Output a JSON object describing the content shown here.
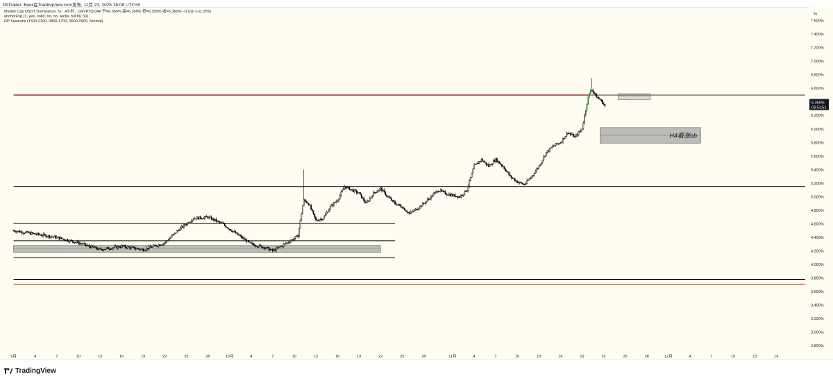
{
  "header": {
    "author_line": "PATrader_Buer在TradingView.com发布, 11月 23, 2025 16:08 UTC+8"
  },
  "legend": {
    "symbol_line": "Market Cap USDT Dominance, % · 4小时 · CRYPTOCAP  开=6.369%  高=6.369%  低=6.359%  收=6.360%  −0.010 (−0.15%)",
    "indicator1": "anchorFvg (1, yes, solid, no, no, wicks, full fill, 50)",
    "indicator2": "RP Sessions (1300-2100, 0800-1700, 0000-0900, Normal)"
  },
  "price_axis": {
    "unit_label": "%",
    "current_price": "6.360%",
    "countdown": "03:51:51"
  },
  "annotation": {
    "ob_label": "H4看涨ob"
  },
  "footer": {
    "brand": "TradingView"
  },
  "colors": {
    "up_candle": "#ffffff",
    "down_candle": "#000000",
    "resistance_line": "#8b1a1a",
    "support_red": "#d32f2f",
    "zone_fill": "#9e9e9e",
    "breakout_candle": "#2e7d32"
  },
  "chart_data": {
    "type": "candlestick",
    "title": "Market Cap USDT Dominance, % · 4小时 · CRYPTOCAP",
    "ylim": [
      2.7,
      7.8
    ],
    "y_ticks": [
      "7.600%",
      "7.400%",
      "7.200%",
      "7.000%",
      "6.800%",
      "6.600%",
      "6.400%",
      "6.200%",
      "6.000%",
      "5.800%",
      "5.600%",
      "5.400%",
      "5.200%",
      "5.000%",
      "4.800%",
      "4.600%",
      "4.400%",
      "4.200%",
      "4.000%",
      "3.800%",
      "3.600%",
      "3.400%",
      "3.200%",
      "3.000%",
      "2.800%"
    ],
    "y_tick_values": [
      7.6,
      7.4,
      7.2,
      7.0,
      6.8,
      6.6,
      6.4,
      6.2,
      6.0,
      5.8,
      5.6,
      5.4,
      5.2,
      5.0,
      4.8,
      4.6,
      4.4,
      4.2,
      4.0,
      3.8,
      3.6,
      3.4,
      3.2,
      3.0,
      2.8
    ],
    "x_ticks": [
      "9月",
      "4",
      "7",
      "10",
      "13",
      "16",
      "19",
      "22",
      "25",
      "28",
      "10月",
      "4",
      "7",
      "10",
      "13",
      "16",
      "19",
      "22",
      "25",
      "28",
      "11月",
      "4",
      "7",
      "10",
      "13",
      "16",
      "19",
      "22",
      "25",
      "28",
      "12月",
      "4",
      "7",
      "10",
      "13",
      "16"
    ],
    "x_tick_days": [
      0,
      3,
      6,
      9,
      12,
      15,
      18,
      21,
      24,
      27,
      30,
      33,
      36,
      39,
      42,
      45,
      48,
      51,
      54,
      57,
      61,
      64,
      67,
      70,
      73,
      76,
      79,
      82,
      85,
      88,
      91,
      94,
      97,
      100,
      103,
      106
    ],
    "price_path": [
      [
        0,
        4.5
      ],
      [
        3,
        4.45
      ],
      [
        6,
        4.4
      ],
      [
        9,
        4.32
      ],
      [
        12,
        4.22
      ],
      [
        15,
        4.27
      ],
      [
        18,
        4.22
      ],
      [
        21,
        4.32
      ],
      [
        23,
        4.52
      ],
      [
        25,
        4.68
      ],
      [
        27,
        4.7
      ],
      [
        29,
        4.6
      ],
      [
        31,
        4.45
      ],
      [
        33,
        4.3
      ],
      [
        35,
        4.25
      ],
      [
        36,
        4.2
      ],
      [
        38,
        4.32
      ],
      [
        39.5,
        4.42
      ],
      [
        40.3,
        4.95
      ],
      [
        41,
        4.9
      ],
      [
        42,
        4.65
      ],
      [
        43,
        4.68
      ],
      [
        44,
        4.85
      ],
      [
        45,
        4.95
      ],
      [
        46,
        5.15
      ],
      [
        47,
        5.1
      ],
      [
        48,
        5.05
      ],
      [
        49,
        4.9
      ],
      [
        50,
        5.05
      ],
      [
        51,
        5.12
      ],
      [
        52,
        5.0
      ],
      [
        53,
        4.9
      ],
      [
        54,
        4.85
      ],
      [
        55,
        4.75
      ],
      [
        56,
        4.82
      ],
      [
        57,
        4.9
      ],
      [
        58,
        5.0
      ],
      [
        59,
        5.1
      ],
      [
        60,
        5.05
      ],
      [
        61,
        5.02
      ],
      [
        62,
        5.0
      ],
      [
        63,
        5.1
      ],
      [
        64,
        5.45
      ],
      [
        65,
        5.55
      ],
      [
        66,
        5.45
      ],
      [
        67,
        5.55
      ],
      [
        68,
        5.45
      ],
      [
        69,
        5.3
      ],
      [
        70,
        5.22
      ],
      [
        71,
        5.18
      ],
      [
        72,
        5.3
      ],
      [
        73,
        5.45
      ],
      [
        74,
        5.65
      ],
      [
        75,
        5.75
      ],
      [
        76,
        5.8
      ],
      [
        77,
        5.95
      ],
      [
        78,
        5.88
      ],
      [
        79,
        6.0
      ],
      [
        79.8,
        6.45
      ],
      [
        80.3,
        6.6
      ],
      [
        80.8,
        6.5
      ],
      [
        81.3,
        6.45
      ],
      [
        81.8,
        6.4
      ],
      [
        82.2,
        6.33
      ]
    ],
    "horizontal_lines": [
      {
        "y": 6.5,
        "x_start": 0,
        "x_end": 80,
        "color": "#8b1a1a"
      },
      {
        "y": 6.5,
        "x_start": 80,
        "x_end": 110,
        "color": "#333333"
      },
      {
        "y": 5.15,
        "x_start": 0,
        "x_end": 110,
        "color": "#000000"
      },
      {
        "y": 4.61,
        "x_start": 0,
        "x_end": 53,
        "color": "#000000"
      },
      {
        "y": 4.35,
        "x_start": 0,
        "x_end": 53,
        "color": "#000000"
      },
      {
        "y": 4.1,
        "x_start": 0,
        "x_end": 53,
        "color": "#000000"
      },
      {
        "y": 3.78,
        "x_start": 0,
        "x_end": 110,
        "color": "#000000"
      },
      {
        "y": 3.71,
        "x_start": 0,
        "x_end": 110,
        "color": "#d32f2f"
      }
    ],
    "zones": [
      {
        "y_top": 4.28,
        "y_bottom": 4.18,
        "x_start": 0,
        "x_end": 51
      },
      {
        "y_top": 6.02,
        "y_bottom": 5.79,
        "x_start": 81.5,
        "x_end": 95.5
      },
      {
        "y_top": 6.52,
        "y_bottom": 6.43,
        "x_start": 84,
        "x_end": 88.5
      }
    ],
    "grid": false,
    "legend_position": "top-left"
  }
}
